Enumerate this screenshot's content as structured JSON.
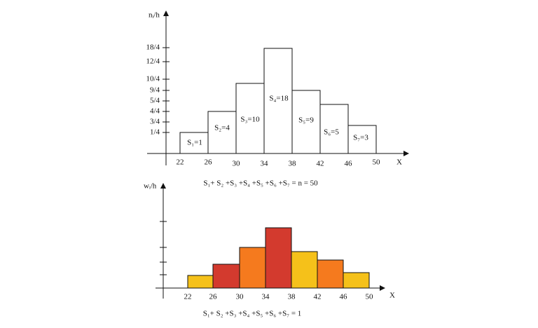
{
  "top": {
    "y_axis_label": "nᵢ/h",
    "x_axis_label": "X",
    "y_ticks": [
      "1/4",
      "3/4",
      "4/4",
      "5/4",
      "9/4",
      "10/4",
      "12/4",
      "18/4"
    ],
    "x_ticks": [
      "22",
      "26",
      "30",
      "34",
      "38",
      "42",
      "46",
      "50"
    ],
    "bars": [
      "S₁=1",
      "S₂=4",
      "S₃=10",
      "S₄=18",
      "S₅=9",
      "S₆=5",
      "S₇=3"
    ],
    "equation": "S₁+ S₂ +S₃ +S₄ +S₅ +S₆ +S₇ = n = 50"
  },
  "bottom": {
    "y_axis_label": "wᵢ/h",
    "x_axis_label": "X",
    "x_ticks": [
      "22",
      "26",
      "30",
      "34",
      "38",
      "42",
      "46",
      "50"
    ],
    "equation": "S₁+ S₂ +S₃ +S₄ +S₅ +S₆ +S₇ = 1"
  }
}
